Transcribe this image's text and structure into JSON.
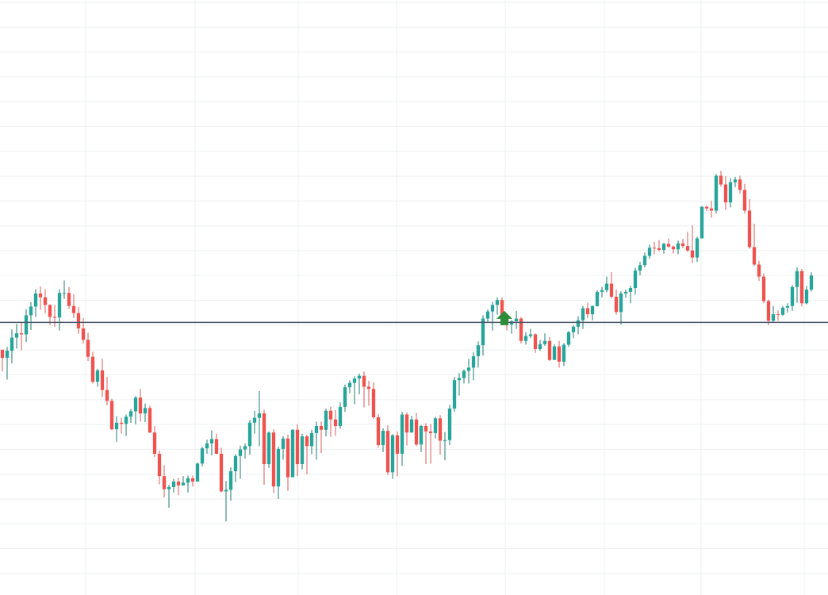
{
  "chart_data": {
    "type": "candlestick",
    "title": "",
    "xlabel": "",
    "ylabel": "",
    "x_range": [
      0,
      174
    ],
    "y_range": [
      -50,
      60
    ],
    "grid": true,
    "legend": "none",
    "horizontal_line": {
      "value": 0
    },
    "markers": [
      {
        "type": "up-arrow",
        "x": 106,
        "value": -0.8
      }
    ],
    "colors": {
      "up": "#26a69a",
      "down": "#ef5350",
      "wick_up": "#1b7d73",
      "wick_down": "#d95b5b",
      "line": "#4a5568",
      "grid": "#eef0f2",
      "arrow": "#2e8b3a"
    },
    "ohlc": [
      [
        -5.0,
        -5.5,
        -9.0,
        -6.5
      ],
      [
        -6.5,
        -4.5,
        -10.5,
        -5.2
      ],
      [
        -5.2,
        -1.3,
        -7.5,
        -2.8
      ],
      [
        -2.8,
        -0.3,
        -4.8,
        -2.0
      ],
      [
        -2.0,
        -0.1,
        -5.1,
        -2.2
      ],
      [
        -2.2,
        2.4,
        -3.6,
        1.3
      ],
      [
        1.3,
        3.7,
        -1.4,
        2.9
      ],
      [
        2.9,
        6.1,
        1.0,
        5.3
      ],
      [
        5.3,
        6.6,
        2.3,
        4.6
      ],
      [
        4.6,
        6.1,
        1.7,
        3.2
      ],
      [
        3.2,
        3.3,
        -0.5,
        1.0
      ],
      [
        1.0,
        3.2,
        -0.8,
        0.9
      ],
      [
        0.9,
        6.1,
        -1.5,
        5.4
      ],
      [
        5.4,
        7.7,
        4.3,
        5.4
      ],
      [
        5.4,
        6.5,
        2.5,
        3.0
      ],
      [
        3.0,
        5.2,
        0.8,
        1.7
      ],
      [
        1.7,
        2.8,
        -2.1,
        -1.1
      ],
      [
        -1.1,
        0.8,
        -3.9,
        -3.2
      ],
      [
        -3.2,
        -1.9,
        -7.1,
        -6.3
      ],
      [
        -6.3,
        -5.4,
        -11.2,
        -10.9
      ],
      [
        -10.9,
        -8.5,
        -11.8,
        -8.8
      ],
      [
        -8.8,
        -6.7,
        -13.7,
        -12.4
      ],
      [
        -12.4,
        -10.0,
        -15.2,
        -14.4
      ],
      [
        -14.4,
        -14.0,
        -19.8,
        -19.6
      ],
      [
        -19.6,
        -17.2,
        -21.9,
        -18.4
      ],
      [
        -18.4,
        -17.5,
        -20.4,
        -18.6
      ],
      [
        -18.6,
        -16.9,
        -20.8,
        -17.3
      ],
      [
        -17.3,
        -15.9,
        -18.4,
        -16.3
      ],
      [
        -16.3,
        -13.5,
        -18.7,
        -13.8
      ],
      [
        -13.8,
        -12.2,
        -18.2,
        -16.7
      ],
      [
        -16.7,
        -14.9,
        -18.3,
        -15.7
      ],
      [
        -15.7,
        -15.3,
        -20.3,
        -20.2
      ],
      [
        -20.2,
        -19.0,
        -24.7,
        -24.1
      ],
      [
        -24.1,
        -23.5,
        -29.7,
        -28.2
      ],
      [
        -28.2,
        -26.2,
        -32.1,
        -30.6
      ],
      [
        -30.6,
        -29.8,
        -34.0,
        -30.2
      ],
      [
        -30.2,
        -28.7,
        -31.2,
        -29.2
      ],
      [
        -29.2,
        -28.5,
        -31.7,
        -29.9
      ],
      [
        -29.9,
        -28.2,
        -29.9,
        -29.4
      ],
      [
        -29.4,
        -28.1,
        -31.2,
        -28.6
      ],
      [
        -28.6,
        -28.1,
        -30.1,
        -29.2
      ],
      [
        -29.2,
        -25.7,
        -29.2,
        -25.9
      ],
      [
        -25.9,
        -22.8,
        -26.4,
        -23.1
      ],
      [
        -23.1,
        -21.5,
        -24.1,
        -22.2
      ],
      [
        -22.2,
        -19.8,
        -24.4,
        -21.4
      ],
      [
        -21.4,
        -20.4,
        -24.2,
        -24.1
      ],
      [
        -24.1,
        -23.0,
        -31.2,
        -31.0
      ],
      [
        -31.0,
        -29.1,
        -36.5,
        -30.7
      ],
      [
        -30.7,
        -26.6,
        -32.7,
        -27.3
      ],
      [
        -27.3,
        -24.2,
        -29.3,
        -24.5
      ],
      [
        -24.5,
        -22.6,
        -28.7,
        -23.3
      ],
      [
        -23.3,
        -22.2,
        -25.0,
        -22.7
      ],
      [
        -22.7,
        -17.9,
        -24.3,
        -18.4
      ],
      [
        -18.4,
        -16.2,
        -20.4,
        -17.5
      ],
      [
        -17.5,
        -12.6,
        -22.7,
        -16.7
      ],
      [
        -16.7,
        -16.0,
        -29.8,
        -26.0
      ],
      [
        -26.0,
        -20.0,
        -26.7,
        -20.2
      ],
      [
        -20.2,
        -19.6,
        -31.3,
        -30.1
      ],
      [
        -30.1,
        -22.8,
        -32.4,
        -23.2
      ],
      [
        -23.2,
        -20.9,
        -25.2,
        -21.3
      ],
      [
        -21.3,
        -20.6,
        -30.9,
        -28.4
      ],
      [
        -28.4,
        -19.6,
        -28.4,
        -19.7
      ],
      [
        -19.7,
        -18.7,
        -28.2,
        -26.0
      ],
      [
        -26.0,
        -20.4,
        -27.0,
        -20.9
      ],
      [
        -20.9,
        -20.6,
        -27.9,
        -22.7
      ],
      [
        -22.7,
        -19.7,
        -24.2,
        -20.3
      ],
      [
        -20.3,
        -18.2,
        -25.2,
        -19.0
      ],
      [
        -19.0,
        -18.2,
        -24.0,
        -19.7
      ],
      [
        -19.7,
        -15.8,
        -20.9,
        -16.2
      ],
      [
        -16.2,
        -15.5,
        -21.0,
        -17.8
      ],
      [
        -17.8,
        -16.1,
        -20.8,
        -19.0
      ],
      [
        -19.0,
        -14.7,
        -19.5,
        -15.5
      ],
      [
        -15.5,
        -11.4,
        -16.4,
        -11.9
      ],
      [
        -11.9,
        -10.6,
        -13.0,
        -11.1
      ],
      [
        -11.1,
        -9.9,
        -15.0,
        -10.3
      ],
      [
        -10.3,
        -9.4,
        -13.2,
        -9.8
      ],
      [
        -9.8,
        -9.0,
        -15.6,
        -11.8
      ],
      [
        -11.8,
        -10.7,
        -15.3,
        -12.2
      ],
      [
        -12.2,
        -11.0,
        -17.7,
        -17.4
      ],
      [
        -17.4,
        -16.8,
        -23.0,
        -22.5
      ],
      [
        -22.5,
        -19.4,
        -23.8,
        -19.9
      ],
      [
        -19.9,
        -18.9,
        -28.0,
        -27.5
      ],
      [
        -27.5,
        -20.5,
        -28.7,
        -20.7
      ],
      [
        -20.7,
        -20.0,
        -28.2,
        -24.1
      ],
      [
        -24.1,
        -16.4,
        -26.3,
        -16.9
      ],
      [
        -16.9,
        -16.5,
        -22.6,
        -20.2
      ],
      [
        -20.2,
        -17.1,
        -20.2,
        -17.8
      ],
      [
        -17.8,
        -16.6,
        -22.7,
        -22.4
      ],
      [
        -22.4,
        -18.8,
        -23.8,
        -19.0
      ],
      [
        -19.0,
        -18.5,
        -26.0,
        -20.0
      ],
      [
        -20.0,
        -18.6,
        -25.9,
        -20.3
      ],
      [
        -20.3,
        -17.3,
        -21.3,
        -17.6
      ],
      [
        -17.6,
        -17.0,
        -24.3,
        -21.7
      ],
      [
        -21.7,
        -20.1,
        -25.3,
        -21.6
      ],
      [
        -21.6,
        -15.1,
        -22.5,
        -15.8
      ],
      [
        -15.8,
        -10.0,
        -16.4,
        -10.6
      ],
      [
        -10.6,
        -9.3,
        -13.4,
        -10.2
      ],
      [
        -10.2,
        -8.6,
        -11.2,
        -8.9
      ],
      [
        -8.9,
        -6.7,
        -11.2,
        -8.3
      ],
      [
        -8.3,
        -5.5,
        -10.6,
        -6.2
      ],
      [
        -6.2,
        -3.5,
        -8.3,
        -4.2
      ],
      [
        -4.2,
        1.3,
        -6.1,
        0.7
      ],
      [
        0.7,
        2.4,
        -0.1,
        2.0
      ],
      [
        2.0,
        3.8,
        -1.5,
        3.2
      ],
      [
        3.2,
        4.6,
        1.4,
        4.1
      ],
      [
        4.1,
        4.6,
        0.3,
        1.1
      ],
      [
        1.1,
        1.4,
        -1.5,
        -0.4
      ],
      [
        -0.4,
        0.4,
        -2.1,
        0.2
      ],
      [
        0.2,
        2.1,
        -1.2,
        0.7
      ],
      [
        0.7,
        1.0,
        -3.9,
        -3.4
      ],
      [
        -3.4,
        -1.8,
        -4.1,
        -2.5
      ],
      [
        -2.5,
        -1.2,
        -2.9,
        -2.2
      ],
      [
        -2.2,
        -2.0,
        -5.6,
        -4.9
      ],
      [
        -4.9,
        -3.2,
        -5.2,
        -4.0
      ],
      [
        -4.0,
        -2.0,
        -4.3,
        -3.4
      ],
      [
        -3.4,
        -2.7,
        -7.1,
        -6.9
      ],
      [
        -6.9,
        -4.0,
        -6.9,
        -4.4
      ],
      [
        -4.4,
        -3.4,
        -8.3,
        -7.2
      ],
      [
        -7.2,
        -3.8,
        -8.0,
        -4.1
      ],
      [
        -4.1,
        -1.6,
        -4.5,
        -1.8
      ],
      [
        -1.8,
        -0.5,
        -2.9,
        -0.8
      ],
      [
        -0.8,
        1.1,
        -2.2,
        0.4
      ],
      [
        0.4,
        3.0,
        -1.2,
        2.6
      ],
      [
        2.6,
        3.6,
        0.8,
        1.5
      ],
      [
        1.5,
        3.1,
        0.4,
        3.0
      ],
      [
        3.0,
        5.9,
        2.9,
        5.6
      ],
      [
        5.6,
        6.5,
        4.6,
        5.9
      ],
      [
        5.9,
        8.4,
        5.5,
        7.1
      ],
      [
        7.1,
        9.2,
        4.4,
        4.7
      ],
      [
        4.7,
        6.0,
        1.4,
        1.9
      ],
      [
        1.9,
        5.7,
        -0.4,
        5.3
      ],
      [
        5.3,
        6.0,
        4.5,
        5.6
      ],
      [
        5.6,
        6.7,
        3.5,
        6.3
      ],
      [
        6.3,
        10.0,
        5.1,
        9.5
      ],
      [
        9.5,
        11.1,
        8.6,
        10.5
      ],
      [
        10.5,
        12.8,
        10.1,
        12.2
      ],
      [
        12.2,
        14.3,
        11.7,
        13.7
      ],
      [
        13.7,
        14.8,
        12.5,
        13.6
      ],
      [
        13.6,
        15.1,
        13.0,
        13.3
      ],
      [
        13.3,
        14.6,
        12.6,
        14.4
      ],
      [
        14.4,
        15.4,
        13.7,
        13.9
      ],
      [
        13.9,
        14.1,
        12.6,
        13.4
      ],
      [
        13.4,
        15.0,
        12.5,
        14.5
      ],
      [
        14.5,
        15.3,
        13.6,
        14.0
      ],
      [
        14.0,
        16.6,
        12.9,
        13.2
      ],
      [
        13.2,
        17.8,
        10.9,
        11.9
      ],
      [
        11.9,
        15.7,
        11.1,
        15.4
      ],
      [
        15.4,
        21.3,
        15.4,
        21.2
      ],
      [
        21.2,
        21.4,
        20.4,
        20.9
      ],
      [
        20.9,
        22.3,
        19.2,
        20.5
      ],
      [
        20.5,
        27.2,
        20.0,
        26.9
      ],
      [
        26.9,
        27.8,
        24.9,
        25.3
      ],
      [
        25.3,
        26.8,
        20.6,
        22.0
      ],
      [
        22.0,
        26.5,
        21.1,
        25.7
      ],
      [
        25.7,
        26.7,
        24.8,
        26.2
      ],
      [
        26.2,
        26.9,
        23.6,
        24.3
      ],
      [
        24.3,
        25.4,
        20.0,
        20.5
      ],
      [
        20.5,
        22.6,
        13.5,
        13.8
      ],
      [
        13.8,
        18.1,
        10.3,
        10.6
      ],
      [
        10.6,
        11.3,
        7.6,
        8.4
      ],
      [
        8.4,
        9.0,
        3.5,
        3.9
      ],
      [
        3.9,
        4.2,
        -0.5,
        0.3
      ],
      [
        0.3,
        3.0,
        0.0,
        1.5
      ],
      [
        1.5,
        2.2,
        0.3,
        1.4
      ],
      [
        1.4,
        3.0,
        1.2,
        2.7
      ],
      [
        2.7,
        3.5,
        1.8,
        3.0
      ],
      [
        3.0,
        6.8,
        2.1,
        6.5
      ],
      [
        6.5,
        10.1,
        3.6,
        9.4
      ],
      [
        9.4,
        9.8,
        2.9,
        3.5
      ],
      [
        3.5,
        6.7,
        3.3,
        6.0
      ],
      [
        6.0,
        9.2,
        5.7,
        8.6
      ]
    ],
    "note": ""
  }
}
